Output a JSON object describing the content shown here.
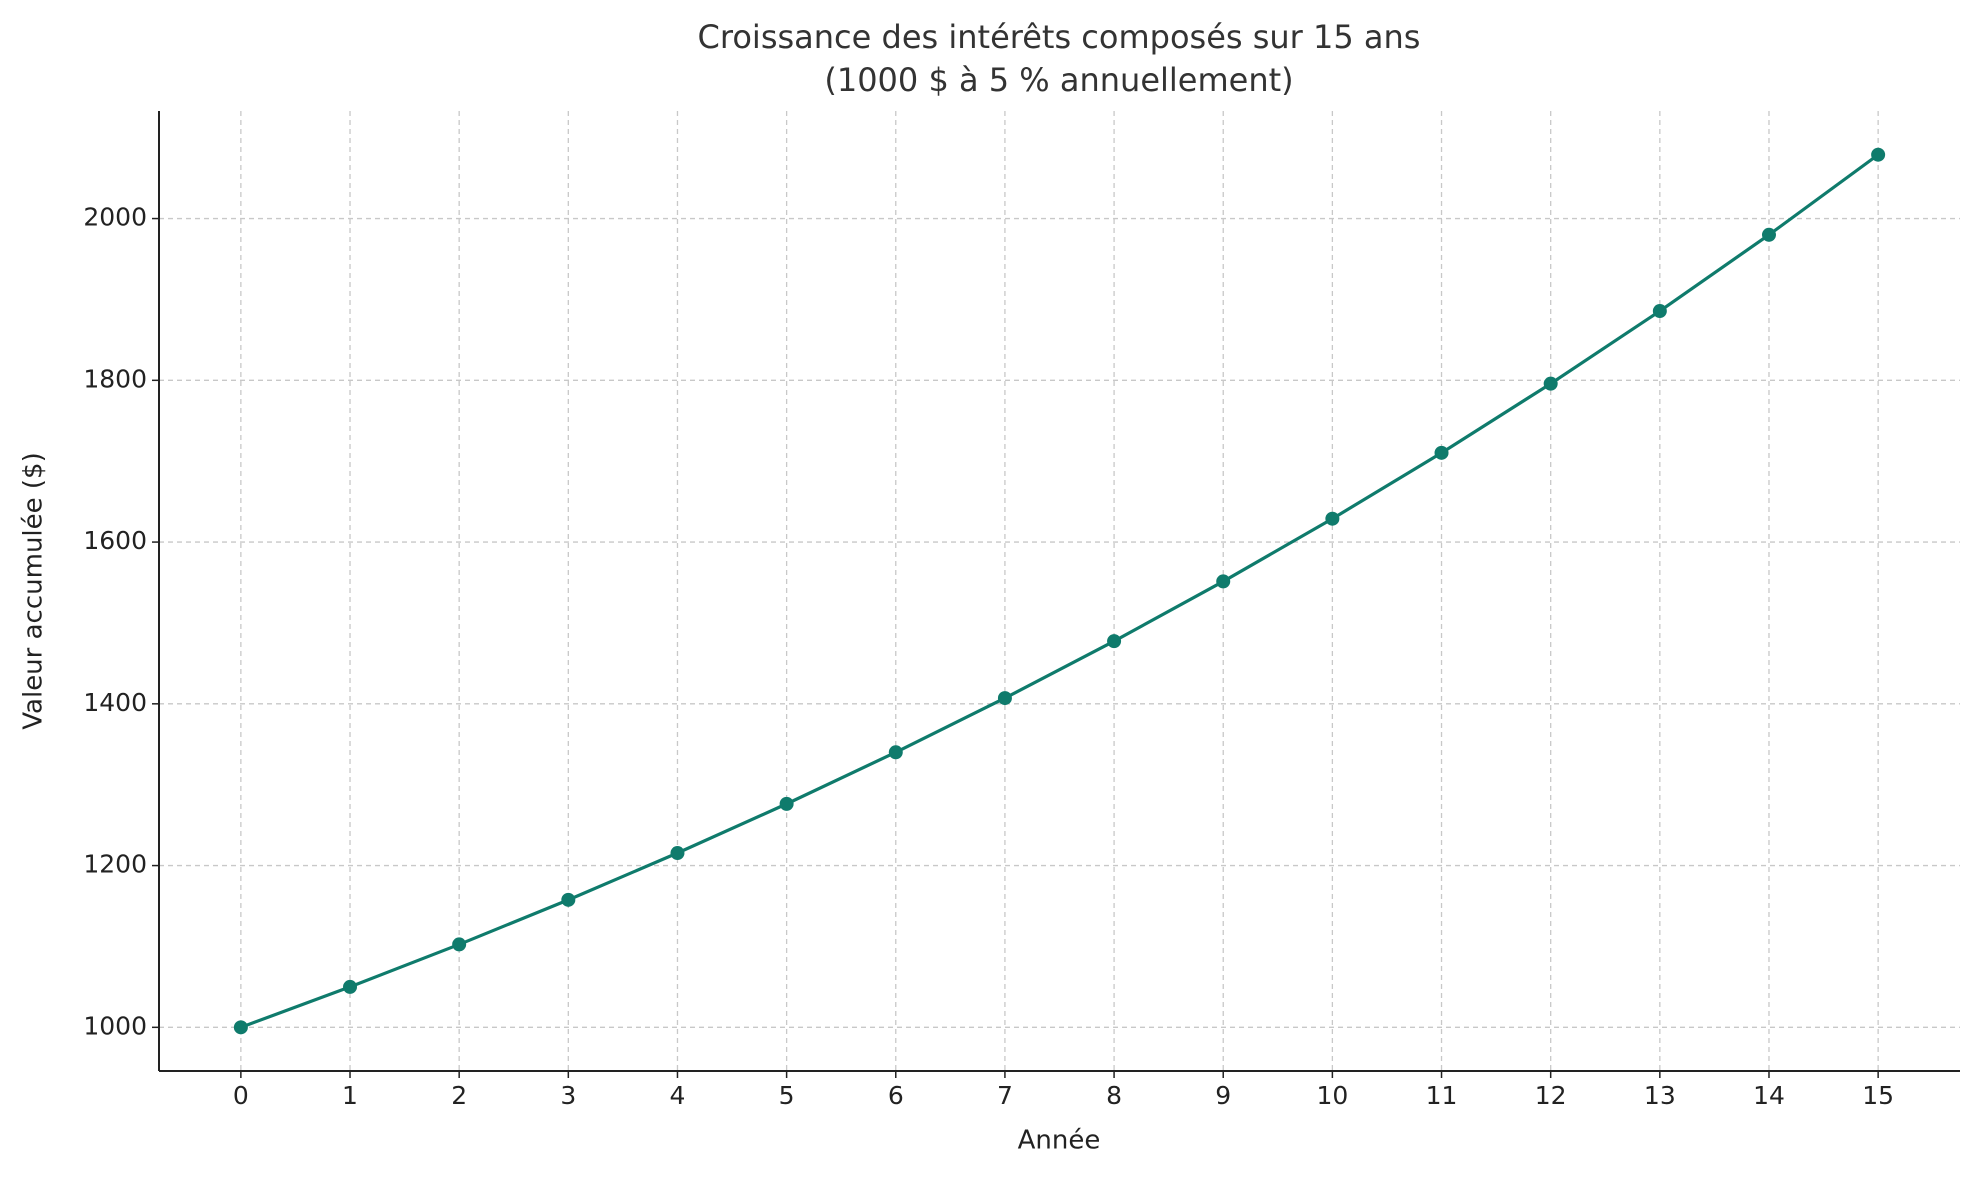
{
  "chart_data": {
    "type": "line",
    "title_lines": [
      "Croissance des intérêts composés sur 15 ans",
      "(1000 $ à 5 % annuellement)"
    ],
    "xlabel": "Année",
    "ylabel": "Valeur accumulée ($)",
    "x": [
      0,
      1,
      2,
      3,
      4,
      5,
      6,
      7,
      8,
      9,
      10,
      11,
      12,
      13,
      14,
      15
    ],
    "series": [
      {
        "name": "Valeur accumulée",
        "color": "#0f7b6c",
        "values": [
          1000,
          1050,
          1102.5,
          1157.63,
          1215.51,
          1276.28,
          1340.1,
          1407.1,
          1477.46,
          1551.33,
          1628.89,
          1710.34,
          1795.86,
          1885.65,
          1979.93,
          2078.93
        ]
      }
    ],
    "xlim": [
      -0.75,
      15.75
    ],
    "ylim": [
      946,
      2133
    ],
    "xticks": [
      0,
      1,
      2,
      3,
      4,
      5,
      6,
      7,
      8,
      9,
      10,
      11,
      12,
      13,
      14,
      15
    ],
    "yticks": [
      1000,
      1200,
      1400,
      1600,
      1800,
      2000
    ],
    "grid": true,
    "legend": false
  }
}
